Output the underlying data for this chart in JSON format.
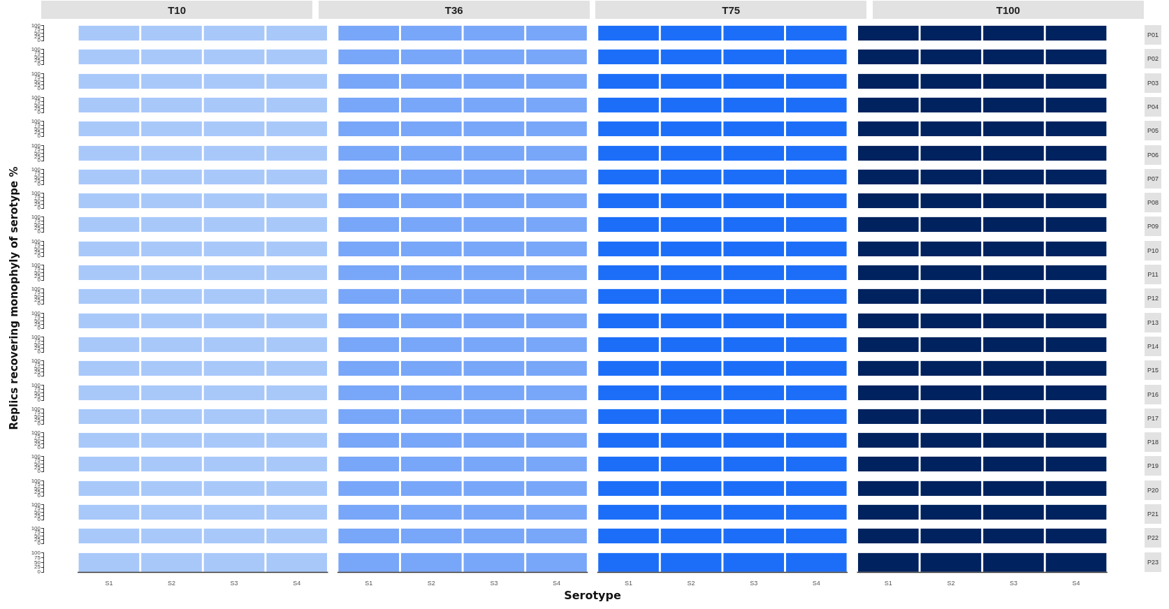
{
  "chart_data": [
    {
      "type": "bar",
      "y2label": "P01",
      "categories": [
        null,
        null,
        null,
        null,
        null,
        null,
        null,
        null,
        null,
        null,
        null,
        null,
        null,
        null,
        null,
        null
      ],
      "values": [
        100,
        100,
        100,
        100,
        100,
        100,
        100,
        100,
        100,
        100,
        100,
        100,
        100,
        100,
        100,
        100
      ],
      "colors": [
        "#a8c8fa",
        "#a8c8fa",
        "#a8c8fa",
        "#a8c8fa",
        "#78a6f8",
        "#78a6f8",
        "#78a6f8",
        "#78a6f8",
        "#1c6ef8",
        "#1c6ef8",
        "#1c6ef8",
        "#1c6ef8",
        "#00225e",
        "#00225e",
        "#00225e",
        "#00225e"
      ],
      "ylim": [
        0,
        100
      ],
      "yticks": [
        0,
        25,
        50,
        75,
        100
      ],
      "tick_labels": "y",
      "annotations": [
        "T10",
        "T36",
        "T75",
        "T100"
      ]
    },
    {
      "type": "bar",
      "y2label": "P02",
      "categories": [
        null,
        null,
        null,
        null,
        null,
        null,
        null,
        null,
        null,
        null,
        null,
        null,
        null,
        null,
        null,
        null
      ],
      "values": [
        100,
        100,
        100,
        100,
        100,
        100,
        100,
        100,
        100,
        100,
        100,
        100,
        100,
        100,
        100,
        100
      ],
      "colors": [
        "#a8c8fa",
        "#a8c8fa",
        "#a8c8fa",
        "#a8c8fa",
        "#78a6f8",
        "#78a6f8",
        "#78a6f8",
        "#78a6f8",
        "#1c6ef8",
        "#1c6ef8",
        "#1c6ef8",
        "#1c6ef8",
        "#00225e",
        "#00225e",
        "#00225e",
        "#00225e"
      ],
      "ylim": [
        0,
        100
      ],
      "yticks": [
        0,
        25,
        50,
        75,
        100
      ],
      "tick_labels": "y"
    },
    {
      "type": "bar",
      "y2label": "P03",
      "categories": [
        null,
        null,
        null,
        null,
        null,
        null,
        null,
        null,
        null,
        null,
        null,
        null,
        null,
        null,
        null,
        null
      ],
      "values": [
        100,
        100,
        100,
        100,
        100,
        100,
        100,
        100,
        100,
        100,
        100,
        100,
        100,
        100,
        100,
        100
      ],
      "colors": [
        "#a8c8fa",
        "#a8c8fa",
        "#a8c8fa",
        "#a8c8fa",
        "#78a6f8",
        "#78a6f8",
        "#78a6f8",
        "#78a6f8",
        "#1c6ef8",
        "#1c6ef8",
        "#1c6ef8",
        "#1c6ef8",
        "#00225e",
        "#00225e",
        "#00225e",
        "#00225e"
      ],
      "ylim": [
        0,
        100
      ],
      "yticks": [
        0,
        25,
        50,
        75,
        100
      ],
      "tick_labels": "y"
    },
    {
      "type": "bar",
      "y2label": "P04",
      "categories": [
        null,
        null,
        null,
        null,
        null,
        null,
        null,
        null,
        null,
        null,
        null,
        null,
        null,
        null,
        null,
        null
      ],
      "values": [
        100,
        100,
        100,
        100,
        100,
        100,
        100,
        100,
        100,
        100,
        100,
        100,
        100,
        100,
        100,
        100
      ],
      "colors": [
        "#a8c8fa",
        "#a8c8fa",
        "#a8c8fa",
        "#a8c8fa",
        "#78a6f8",
        "#78a6f8",
        "#78a6f8",
        "#78a6f8",
        "#1c6ef8",
        "#1c6ef8",
        "#1c6ef8",
        "#1c6ef8",
        "#00225e",
        "#00225e",
        "#00225e",
        "#00225e"
      ],
      "ylim": [
        0,
        100
      ],
      "yticks": [
        0,
        25,
        50,
        75,
        100
      ],
      "tick_labels": "y"
    },
    {
      "type": "bar",
      "y2label": "P05",
      "categories": [
        null,
        null,
        null,
        null,
        null,
        null,
        null,
        null,
        null,
        null,
        null,
        null,
        null,
        null,
        null,
        null
      ],
      "values": [
        100,
        100,
        100,
        100,
        100,
        100,
        100,
        100,
        100,
        100,
        100,
        100,
        100,
        100,
        100,
        100
      ],
      "colors": [
        "#a8c8fa",
        "#a8c8fa",
        "#a8c8fa",
        "#a8c8fa",
        "#78a6f8",
        "#78a6f8",
        "#78a6f8",
        "#78a6f8",
        "#1c6ef8",
        "#1c6ef8",
        "#1c6ef8",
        "#1c6ef8",
        "#00225e",
        "#00225e",
        "#00225e",
        "#00225e"
      ],
      "ylim": [
        0,
        100
      ],
      "yticks": [
        0,
        25,
        50,
        75,
        100
      ],
      "tick_labels": "y"
    },
    {
      "type": "bar",
      "y2label": "P06",
      "categories": [
        null,
        null,
        null,
        null,
        null,
        null,
        null,
        null,
        null,
        null,
        null,
        null,
        null,
        null,
        null,
        null
      ],
      "values": [
        100,
        100,
        100,
        100,
        100,
        100,
        100,
        100,
        100,
        100,
        100,
        100,
        100,
        100,
        100,
        100
      ],
      "colors": [
        "#a8c8fa",
        "#a8c8fa",
        "#a8c8fa",
        "#a8c8fa",
        "#78a6f8",
        "#78a6f8",
        "#78a6f8",
        "#78a6f8",
        "#1c6ef8",
        "#1c6ef8",
        "#1c6ef8",
        "#1c6ef8",
        "#00225e",
        "#00225e",
        "#00225e",
        "#00225e"
      ],
      "ylim": [
        0,
        100
      ],
      "yticks": [
        0,
        25,
        50,
        75,
        100
      ],
      "tick_labels": "y"
    },
    {
      "type": "bar",
      "y2label": "P07",
      "categories": [
        null,
        null,
        null,
        null,
        null,
        null,
        null,
        null,
        null,
        null,
        null,
        null,
        null,
        null,
        null,
        null
      ],
      "values": [
        100,
        100,
        100,
        100,
        100,
        100,
        100,
        100,
        100,
        100,
        100,
        100,
        100,
        100,
        100,
        100
      ],
      "colors": [
        "#a8c8fa",
        "#a8c8fa",
        "#a8c8fa",
        "#a8c8fa",
        "#78a6f8",
        "#78a6f8",
        "#78a6f8",
        "#78a6f8",
        "#1c6ef8",
        "#1c6ef8",
        "#1c6ef8",
        "#1c6ef8",
        "#00225e",
        "#00225e",
        "#00225e",
        "#00225e"
      ],
      "ylim": [
        0,
        100
      ],
      "yticks": [
        0,
        25,
        50,
        75,
        100
      ],
      "tick_labels": "y"
    },
    {
      "type": "bar",
      "y2label": "P08",
      "categories": [
        null,
        null,
        null,
        null,
        null,
        null,
        null,
        null,
        null,
        null,
        null,
        null,
        null,
        null,
        null,
        null
      ],
      "values": [
        100,
        100,
        100,
        100,
        100,
        100,
        100,
        100,
        100,
        100,
        100,
        100,
        100,
        100,
        100,
        100
      ],
      "colors": [
        "#a8c8fa",
        "#a8c8fa",
        "#a8c8fa",
        "#a8c8fa",
        "#78a6f8",
        "#78a6f8",
        "#78a6f8",
        "#78a6f8",
        "#1c6ef8",
        "#1c6ef8",
        "#1c6ef8",
        "#1c6ef8",
        "#00225e",
        "#00225e",
        "#00225e",
        "#00225e"
      ],
      "ylim": [
        0,
        100
      ],
      "yticks": [
        0,
        25,
        50,
        75,
        100
      ],
      "tick_labels": "y"
    },
    {
      "type": "bar",
      "y2label": "P09",
      "categories": [
        null,
        null,
        null,
        null,
        null,
        null,
        null,
        null,
        null,
        null,
        null,
        null,
        null,
        null,
        null,
        null
      ],
      "values": [
        100,
        100,
        100,
        100,
        100,
        100,
        100,
        100,
        100,
        100,
        100,
        100,
        100,
        100,
        100,
        100
      ],
      "colors": [
        "#a8c8fa",
        "#a8c8fa",
        "#a8c8fa",
        "#a8c8fa",
        "#78a6f8",
        "#78a6f8",
        "#78a6f8",
        "#78a6f8",
        "#1c6ef8",
        "#1c6ef8",
        "#1c6ef8",
        "#1c6ef8",
        "#00225e",
        "#00225e",
        "#00225e",
        "#00225e"
      ],
      "ylim": [
        0,
        100
      ],
      "yticks": [
        0,
        25,
        50,
        75,
        100
      ],
      "tick_labels": "y"
    },
    {
      "type": "bar",
      "y2label": "P10",
      "categories": [
        null,
        null,
        null,
        null,
        null,
        null,
        null,
        null,
        null,
        null,
        null,
        null,
        null,
        null,
        null,
        null
      ],
      "values": [
        100,
        100,
        100,
        100,
        100,
        100,
        100,
        100,
        100,
        100,
        100,
        100,
        100,
        100,
        100,
        100
      ],
      "colors": [
        "#a8c8fa",
        "#a8c8fa",
        "#a8c8fa",
        "#a8c8fa",
        "#78a6f8",
        "#78a6f8",
        "#78a6f8",
        "#78a6f8",
        "#1c6ef8",
        "#1c6ef8",
        "#1c6ef8",
        "#1c6ef8",
        "#00225e",
        "#00225e",
        "#00225e",
        "#00225e"
      ],
      "ylim": [
        0,
        100
      ],
      "yticks": [
        0,
        25,
        50,
        75,
        100
      ],
      "tick_labels": "y"
    },
    {
      "type": "bar",
      "y2label": "P11",
      "categories": [
        null,
        null,
        null,
        null,
        null,
        null,
        null,
        null,
        null,
        null,
        null,
        null,
        null,
        null,
        null,
        null
      ],
      "values": [
        100,
        100,
        100,
        100,
        100,
        100,
        100,
        100,
        100,
        100,
        100,
        100,
        100,
        100,
        100,
        100
      ],
      "colors": [
        "#a8c8fa",
        "#a8c8fa",
        "#a8c8fa",
        "#a8c8fa",
        "#78a6f8",
        "#78a6f8",
        "#78a6f8",
        "#78a6f8",
        "#1c6ef8",
        "#1c6ef8",
        "#1c6ef8",
        "#1c6ef8",
        "#00225e",
        "#00225e",
        "#00225e",
        "#00225e"
      ],
      "ylim": [
        0,
        100
      ],
      "yticks": [
        0,
        25,
        50,
        75,
        100
      ],
      "tick_labels": "y"
    },
    {
      "type": "bar",
      "y2label": "P12",
      "ylabel": "Replics recovering monophyly of serotype %",
      "categories": [
        null,
        null,
        null,
        null,
        null,
        null,
        null,
        null,
        null,
        null,
        null,
        null,
        null,
        null,
        null,
        null
      ],
      "values": [
        100,
        100,
        100,
        100,
        100,
        100,
        100,
        100,
        100,
        100,
        100,
        100,
        100,
        100,
        100,
        100
      ],
      "colors": [
        "#a8c8fa",
        "#a8c8fa",
        "#a8c8fa",
        "#a8c8fa",
        "#78a6f8",
        "#78a6f8",
        "#78a6f8",
        "#78a6f8",
        "#1c6ef8",
        "#1c6ef8",
        "#1c6ef8",
        "#1c6ef8",
        "#00225e",
        "#00225e",
        "#00225e",
        "#00225e"
      ],
      "ylim": [
        0,
        100
      ],
      "yticks": [
        0,
        25,
        50,
        75,
        100
      ],
      "tick_labels": "y"
    },
    {
      "type": "bar",
      "y2label": "P13",
      "categories": [
        null,
        null,
        null,
        null,
        null,
        null,
        null,
        null,
        null,
        null,
        null,
        null,
        null,
        null,
        null,
        null
      ],
      "values": [
        100,
        100,
        100,
        100,
        100,
        100,
        100,
        100,
        100,
        100,
        100,
        100,
        100,
        100,
        100,
        100
      ],
      "colors": [
        "#a8c8fa",
        "#a8c8fa",
        "#a8c8fa",
        "#a8c8fa",
        "#78a6f8",
        "#78a6f8",
        "#78a6f8",
        "#78a6f8",
        "#1c6ef8",
        "#1c6ef8",
        "#1c6ef8",
        "#1c6ef8",
        "#00225e",
        "#00225e",
        "#00225e",
        "#00225e"
      ],
      "ylim": [
        0,
        100
      ],
      "yticks": [
        0,
        25,
        50,
        75,
        100
      ],
      "tick_labels": "y"
    },
    {
      "type": "bar",
      "y2label": "P14",
      "categories": [
        null,
        null,
        null,
        null,
        null,
        null,
        null,
        null,
        null,
        null,
        null,
        null,
        null,
        null,
        null,
        null
      ],
      "values": [
        100,
        100,
        100,
        100,
        100,
        100,
        100,
        100,
        100,
        100,
        100,
        100,
        100,
        100,
        100,
        100
      ],
      "colors": [
        "#a8c8fa",
        "#a8c8fa",
        "#a8c8fa",
        "#a8c8fa",
        "#78a6f8",
        "#78a6f8",
        "#78a6f8",
        "#78a6f8",
        "#1c6ef8",
        "#1c6ef8",
        "#1c6ef8",
        "#1c6ef8",
        "#00225e",
        "#00225e",
        "#00225e",
        "#00225e"
      ],
      "ylim": [
        0,
        100
      ],
      "yticks": [
        0,
        25,
        50,
        75,
        100
      ],
      "tick_labels": "y"
    },
    {
      "type": "bar",
      "y2label": "P15",
      "categories": [
        null,
        null,
        null,
        null,
        null,
        null,
        null,
        null,
        null,
        null,
        null,
        null,
        null,
        null,
        null,
        null
      ],
      "values": [
        100,
        100,
        100,
        100,
        100,
        100,
        100,
        100,
        100,
        100,
        100,
        100,
        100,
        100,
        100,
        100
      ],
      "colors": [
        "#a8c8fa",
        "#a8c8fa",
        "#a8c8fa",
        "#a8c8fa",
        "#78a6f8",
        "#78a6f8",
        "#78a6f8",
        "#78a6f8",
        "#1c6ef8",
        "#1c6ef8",
        "#1c6ef8",
        "#1c6ef8",
        "#00225e",
        "#00225e",
        "#00225e",
        "#00225e"
      ],
      "ylim": [
        0,
        100
      ],
      "yticks": [
        0,
        25,
        50,
        75,
        100
      ],
      "tick_labels": "y"
    },
    {
      "type": "bar",
      "y2label": "P16",
      "categories": [
        null,
        null,
        null,
        null,
        null,
        null,
        null,
        null,
        null,
        null,
        null,
        null,
        null,
        null,
        null,
        null
      ],
      "values": [
        100,
        100,
        100,
        100,
        100,
        100,
        100,
        100,
        100,
        100,
        100,
        100,
        100,
        100,
        100,
        100
      ],
      "colors": [
        "#a8c8fa",
        "#a8c8fa",
        "#a8c8fa",
        "#a8c8fa",
        "#78a6f8",
        "#78a6f8",
        "#78a6f8",
        "#78a6f8",
        "#1c6ef8",
        "#1c6ef8",
        "#1c6ef8",
        "#1c6ef8",
        "#00225e",
        "#00225e",
        "#00225e",
        "#00225e"
      ],
      "ylim": [
        0,
        100
      ],
      "yticks": [
        0,
        25,
        50,
        75,
        100
      ],
      "tick_labels": "y"
    },
    {
      "type": "bar",
      "y2label": "P17",
      "categories": [
        null,
        null,
        null,
        null,
        null,
        null,
        null,
        null,
        null,
        null,
        null,
        null,
        null,
        null,
        null,
        null
      ],
      "values": [
        100,
        100,
        100,
        100,
        100,
        100,
        100,
        100,
        100,
        100,
        100,
        100,
        100,
        100,
        100,
        100
      ],
      "colors": [
        "#a8c8fa",
        "#a8c8fa",
        "#a8c8fa",
        "#a8c8fa",
        "#78a6f8",
        "#78a6f8",
        "#78a6f8",
        "#78a6f8",
        "#1c6ef8",
        "#1c6ef8",
        "#1c6ef8",
        "#1c6ef8",
        "#00225e",
        "#00225e",
        "#00225e",
        "#00225e"
      ],
      "ylim": [
        0,
        100
      ],
      "yticks": [
        0,
        25,
        50,
        75,
        100
      ],
      "tick_labels": "y"
    },
    {
      "type": "bar",
      "y2label": "P18",
      "categories": [
        null,
        null,
        null,
        null,
        null,
        null,
        null,
        null,
        null,
        null,
        null,
        null,
        null,
        null,
        null,
        null
      ],
      "values": [
        100,
        100,
        100,
        100,
        100,
        100,
        100,
        100,
        100,
        100,
        100,
        100,
        100,
        100,
        100,
        100
      ],
      "colors": [
        "#a8c8fa",
        "#a8c8fa",
        "#a8c8fa",
        "#a8c8fa",
        "#78a6f8",
        "#78a6f8",
        "#78a6f8",
        "#78a6f8",
        "#1c6ef8",
        "#1c6ef8",
        "#1c6ef8",
        "#1c6ef8",
        "#00225e",
        "#00225e",
        "#00225e",
        "#00225e"
      ],
      "ylim": [
        0,
        100
      ],
      "yticks": [
        0,
        25,
        50,
        75,
        100
      ],
      "tick_labels": "y"
    },
    {
      "type": "bar",
      "y2label": "P19",
      "categories": [
        null,
        null,
        null,
        null,
        null,
        null,
        null,
        null,
        null,
        null,
        null,
        null,
        null,
        null,
        null,
        null
      ],
      "values": [
        100,
        100,
        100,
        100,
        100,
        100,
        100,
        100,
        100,
        100,
        100,
        100,
        100,
        100,
        100,
        100
      ],
      "colors": [
        "#a8c8fa",
        "#a8c8fa",
        "#a8c8fa",
        "#a8c8fa",
        "#78a6f8",
        "#78a6f8",
        "#78a6f8",
        "#78a6f8",
        "#1c6ef8",
        "#1c6ef8",
        "#1c6ef8",
        "#1c6ef8",
        "#00225e",
        "#00225e",
        "#00225e",
        "#00225e"
      ],
      "ylim": [
        0,
        100
      ],
      "yticks": [
        0,
        25,
        50,
        75,
        100
      ],
      "tick_labels": "y"
    },
    {
      "type": "bar",
      "y2label": "P20",
      "categories": [
        null,
        null,
        null,
        null,
        null,
        null,
        null,
        null,
        null,
        null,
        null,
        null,
        null,
        null,
        null,
        null
      ],
      "values": [
        100,
        100,
        100,
        100,
        100,
        100,
        100,
        100,
        100,
        100,
        100,
        100,
        100,
        100,
        100,
        100
      ],
      "colors": [
        "#a8c8fa",
        "#a8c8fa",
        "#a8c8fa",
        "#a8c8fa",
        "#78a6f8",
        "#78a6f8",
        "#78a6f8",
        "#78a6f8",
        "#1c6ef8",
        "#1c6ef8",
        "#1c6ef8",
        "#1c6ef8",
        "#00225e",
        "#00225e",
        "#00225e",
        "#00225e"
      ],
      "ylim": [
        0,
        100
      ],
      "yticks": [
        0,
        25,
        50,
        75,
        100
      ],
      "tick_labels": "y"
    },
    {
      "type": "bar",
      "y2label": "P21",
      "categories": [
        null,
        null,
        null,
        null,
        null,
        null,
        null,
        null,
        null,
        null,
        null,
        null,
        null,
        null,
        null,
        null
      ],
      "values": [
        100,
        100,
        100,
        100,
        100,
        100,
        100,
        100,
        100,
        100,
        100,
        100,
        100,
        100,
        100,
        100
      ],
      "colors": [
        "#a8c8fa",
        "#a8c8fa",
        "#a8c8fa",
        "#a8c8fa",
        "#78a6f8",
        "#78a6f8",
        "#78a6f8",
        "#78a6f8",
        "#1c6ef8",
        "#1c6ef8",
        "#1c6ef8",
        "#1c6ef8",
        "#00225e",
        "#00225e",
        "#00225e",
        "#00225e"
      ],
      "ylim": [
        0,
        100
      ],
      "yticks": [
        0,
        25,
        50,
        75,
        100
      ],
      "tick_labels": "y"
    },
    {
      "type": "bar",
      "y2label": "P22",
      "categories": [
        null,
        null,
        null,
        null,
        null,
        null,
        null,
        null,
        null,
        null,
        null,
        null,
        null,
        null,
        null,
        null
      ],
      "values": [
        100,
        100,
        100,
        100,
        100,
        100,
        100,
        100,
        100,
        100,
        100,
        100,
        100,
        100,
        100,
        100
      ],
      "colors": [
        "#a8c8fa",
        "#a8c8fa",
        "#a8c8fa",
        "#a8c8fa",
        "#78a6f8",
        "#78a6f8",
        "#78a6f8",
        "#78a6f8",
        "#1c6ef8",
        "#1c6ef8",
        "#1c6ef8",
        "#1c6ef8",
        "#00225e",
        "#00225e",
        "#00225e",
        "#00225e"
      ],
      "ylim": [
        0,
        100
      ],
      "yticks": [
        0,
        25,
        50,
        75,
        100
      ],
      "tick_labels": "y"
    },
    {
      "type": "bar",
      "y2label": "P23",
      "xlabel": "Serotype",
      "categories": [
        "S1",
        "S2",
        "S3",
        "S4",
        "S1",
        "S2",
        "S3",
        "S4",
        "S1",
        "S2",
        "S3",
        "S4",
        "S1",
        "S2",
        "S3",
        "S4"
      ],
      "values": [
        100,
        100,
        100,
        100,
        100,
        100,
        100,
        100,
        100,
        100,
        100,
        100,
        100,
        100,
        100,
        100
      ],
      "colors": [
        "#a8c8fa",
        "#a8c8fa",
        "#a8c8fa",
        "#a8c8fa",
        "#78a6f8",
        "#78a6f8",
        "#78a6f8",
        "#78a6f8",
        "#1c6ef8",
        "#1c6ef8",
        "#1c6ef8",
        "#1c6ef8",
        "#00225e",
        "#00225e",
        "#00225e",
        "#00225e"
      ],
      "ylim": [
        0,
        100
      ],
      "yticks": [
        0,
        25,
        50,
        75,
        100
      ]
    }
  ]
}
